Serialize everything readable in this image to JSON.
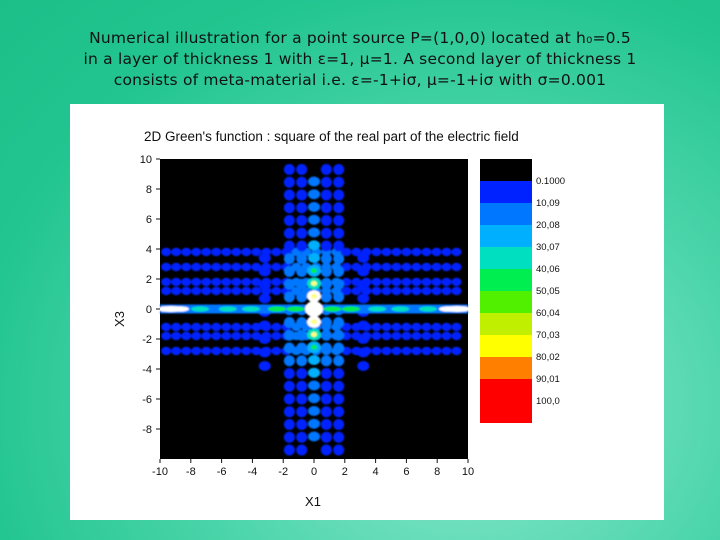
{
  "caption": {
    "lines": [
      "Numerical illustration for a point source P=(1,0,0) located at h₀=0.5",
      "in a layer of thickness 1 with ε=1, μ=1. A second layer of thickness 1",
      "consists of meta-material i.e. ε=-1+iσ, μ=-1+iσ with σ=0.001"
    ]
  },
  "chart_data": {
    "type": "heatmap",
    "title": "2D Green's function : square of the real part of the electric field",
    "xlabel": "X1",
    "ylabel": "X3",
    "xlim": [
      -10,
      10
    ],
    "ylim": [
      -10,
      10
    ],
    "x_ticks": [
      "-10",
      "-8",
      "-6",
      "-4",
      "-2",
      "0",
      "2",
      "4",
      "6",
      "8",
      "10"
    ],
    "y_ticks": [
      "10",
      "8",
      "6",
      "4",
      "2",
      "0",
      "-2",
      "-4",
      "-6",
      "-8"
    ],
    "legend": {
      "levels": [
        "0.1000",
        "10,09",
        "20,08",
        "30,07",
        "40,06",
        "50,05",
        "60,04",
        "70,03",
        "80,02",
        "90,01",
        "100,0"
      ],
      "colors": [
        "#000000",
        "#0022ff",
        "#0077ff",
        "#00b0ff",
        "#00e0c0",
        "#00ee50",
        "#50f000",
        "#c0f000",
        "#ffff00",
        "#ff8000",
        "#ff0000",
        "#ff0000"
      ]
    },
    "background_color": "#000000"
  }
}
